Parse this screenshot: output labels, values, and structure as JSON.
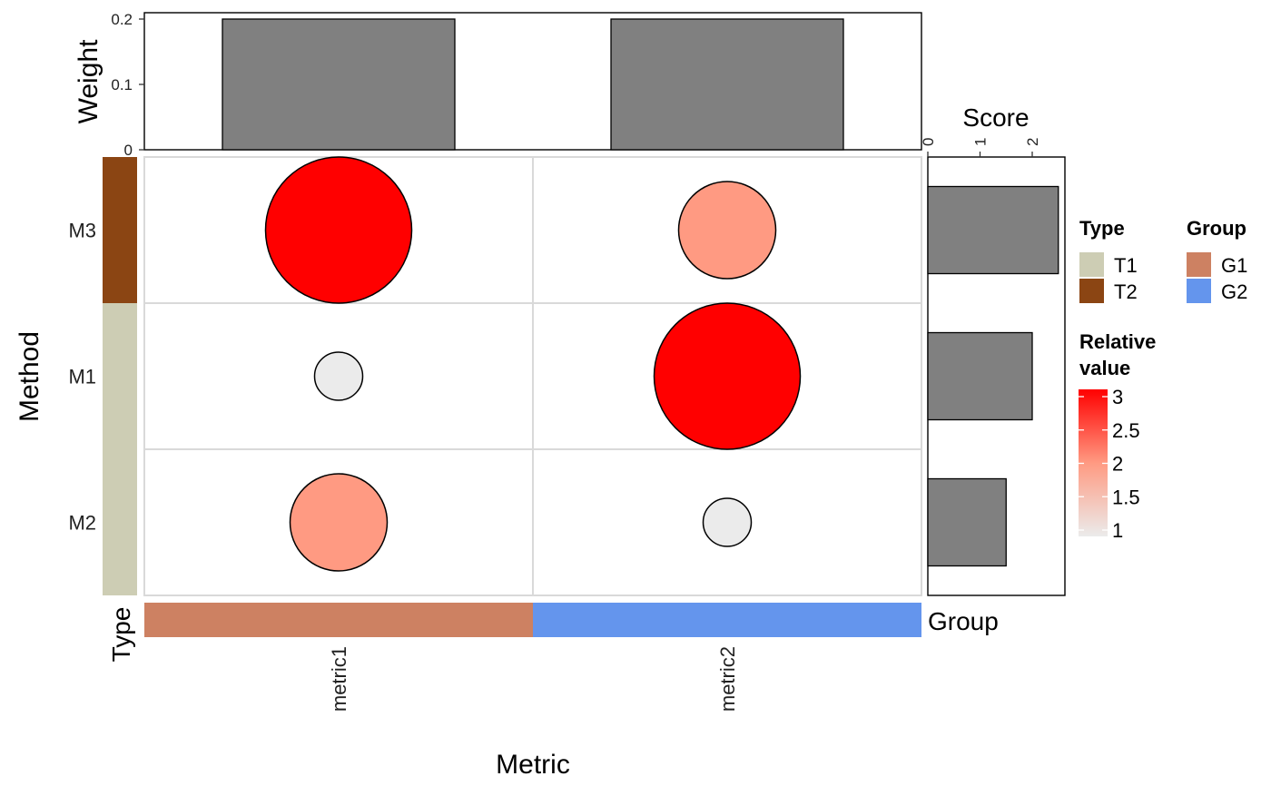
{
  "chart_data": {
    "type": "heatmap",
    "subtype": "bubble-matrix with marginal bar annotations",
    "xlabel": "Metric",
    "ylabel": "Method",
    "metrics": [
      "metric1",
      "metric2"
    ],
    "methods": [
      "M3",
      "M1",
      "M2"
    ],
    "cells": [
      {
        "method": "M3",
        "metric": "metric1",
        "relative_value": 3.0
      },
      {
        "method": "M3",
        "metric": "metric2",
        "relative_value": 2.0
      },
      {
        "method": "M1",
        "metric": "metric1",
        "relative_value": 1.0
      },
      {
        "method": "M1",
        "metric": "metric2",
        "relative_value": 3.0
      },
      {
        "method": "M2",
        "metric": "metric1",
        "relative_value": 2.0
      },
      {
        "method": "M2",
        "metric": "metric2",
        "relative_value": 1.0
      }
    ],
    "weight_bars": {
      "label": "Weight",
      "values": [
        0.2,
        0.2
      ],
      "ylim": [
        0,
        0.2
      ],
      "ticks": [
        "0",
        "0.1",
        "0.2"
      ]
    },
    "score_bars": {
      "label": "Score",
      "values": [
        2.5,
        2.0,
        1.5
      ],
      "xlim": [
        0,
        2.6
      ],
      "ticks": [
        "0",
        "1",
        "2"
      ]
    },
    "type_annotation": {
      "label": "Type",
      "values": [
        "T2",
        "T1",
        "T1"
      ]
    },
    "group_annotation": {
      "label": "Group",
      "values": [
        "G1",
        "G2"
      ]
    },
    "legends": {
      "type": {
        "title": "Type",
        "items": [
          {
            "label": "T1",
            "color": "#cdcdb4"
          },
          {
            "label": "T2",
            "color": "#8b4513"
          }
        ]
      },
      "group": {
        "title": "Group",
        "items": [
          {
            "label": "G1",
            "color": "#cd8162"
          },
          {
            "label": "G2",
            "color": "#6495ed"
          }
        ]
      },
      "relative_value": {
        "title_lines": [
          "Relative",
          "value"
        ],
        "ticks": [
          "3",
          "2.5",
          "2",
          "1.5",
          "1"
        ],
        "range": [
          1,
          3
        ],
        "color_low": "#ebebeb",
        "color_high": "#ff0000"
      }
    },
    "colors": {
      "bar_fill": "#808080",
      "grid": "#d9d9d9"
    }
  }
}
